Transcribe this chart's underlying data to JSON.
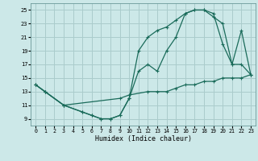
{
  "xlabel": "Humidex (Indice chaleur)",
  "bg_color": "#cce8e8",
  "grid_color": "#aacccc",
  "line_color": "#1a6b5a",
  "xlim": [
    -0.5,
    23.5
  ],
  "ylim": [
    8,
    26
  ],
  "xticks": [
    0,
    1,
    2,
    3,
    4,
    5,
    6,
    7,
    8,
    9,
    10,
    11,
    12,
    13,
    14,
    15,
    16,
    17,
    18,
    19,
    20,
    21,
    22,
    23
  ],
  "yticks": [
    9,
    11,
    13,
    15,
    17,
    19,
    21,
    23,
    25
  ],
  "curve1_x": [
    0,
    1,
    3,
    5,
    6,
    7,
    8,
    9,
    10,
    11,
    12,
    13,
    14,
    15,
    16,
    17,
    18,
    19,
    20,
    21,
    22,
    23
  ],
  "curve1_y": [
    14,
    13,
    11,
    10,
    9.5,
    9,
    9,
    9.5,
    12,
    16,
    17,
    16,
    19,
    21,
    24.5,
    25,
    25,
    24,
    23,
    17,
    22,
    15.5
  ],
  "curve2_x": [
    0,
    1,
    3,
    5,
    6,
    7,
    8,
    9,
    10,
    11,
    12,
    13,
    14,
    15,
    16,
    17,
    18,
    19,
    20,
    21,
    22,
    23
  ],
  "curve2_y": [
    14,
    13,
    11,
    10,
    9.5,
    9,
    9,
    9.5,
    12,
    19,
    21,
    22,
    22.5,
    23.5,
    24.5,
    25,
    25,
    24.5,
    20,
    17,
    17,
    15.5
  ],
  "curve3_x": [
    0,
    1,
    3,
    9,
    10,
    12,
    13,
    14,
    15,
    16,
    17,
    18,
    19,
    20,
    21,
    22,
    23
  ],
  "curve3_y": [
    14,
    13,
    11,
    12,
    12.5,
    13,
    13,
    13,
    13.5,
    14,
    14,
    14.5,
    14.5,
    15,
    15,
    15,
    15.5
  ]
}
